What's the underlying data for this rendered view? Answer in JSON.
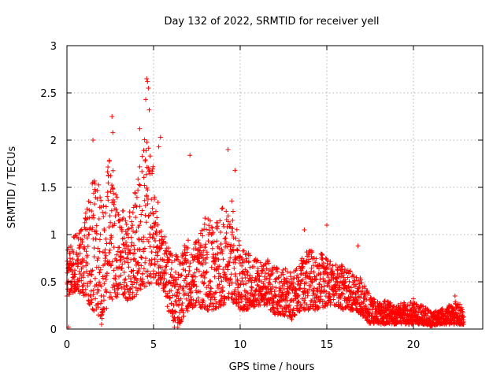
{
  "chart_data": {
    "type": "scatter",
    "title": "Day 132 of 2022, SRMTID for receiver yell",
    "xlabel": "GPS time / hours",
    "ylabel": "SRMTID / TECUs",
    "xlim": [
      0,
      24
    ],
    "ylim": [
      0,
      3
    ],
    "xticks": [
      0,
      5,
      10,
      15,
      20
    ],
    "yticks": [
      0,
      0.5,
      1,
      1.5,
      2,
      2.5,
      3
    ],
    "grid": true,
    "marker": "plus",
    "color": "#ff0000",
    "series": [
      {
        "name": "SRMTID",
        "envelope": {
          "x": [
            0,
            0.5,
            1,
            1.5,
            2,
            2.5,
            3,
            3.5,
            4,
            4.5,
            5,
            5.5,
            6,
            6.5,
            7,
            7.5,
            8,
            8.5,
            9,
            9.5,
            10,
            10.5,
            11,
            11.5,
            12,
            12.5,
            13,
            13.5,
            14,
            14.5,
            15,
            15.5,
            16,
            16.5,
            17,
            17.5,
            18,
            18.5,
            19,
            19.5,
            20,
            20.5,
            21,
            21.5,
            22,
            22.5,
            22.9
          ],
          "low": [
            0.35,
            0.4,
            0.35,
            0.2,
            0.1,
            0.3,
            0.35,
            0.3,
            0.35,
            0.45,
            0.5,
            0.45,
            0.1,
            0.05,
            0.2,
            0.25,
            0.2,
            0.2,
            0.25,
            0.3,
            0.2,
            0.2,
            0.25,
            0.25,
            0.15,
            0.15,
            0.1,
            0.2,
            0.2,
            0.2,
            0.25,
            0.25,
            0.2,
            0.2,
            0.15,
            0.05,
            0.05,
            0.05,
            0.05,
            0.05,
            0.05,
            0.05,
            0.03,
            0.05,
            0.05,
            0.05,
            0.05
          ],
          "high": [
            0.9,
            1.0,
            1.2,
            1.6,
            1.5,
            1.9,
            1.3,
            1.2,
            1.5,
            2.1,
            1.7,
            1.1,
            0.8,
            0.8,
            0.95,
            1.0,
            1.2,
            1.1,
            1.3,
            1.4,
            0.9,
            0.8,
            0.75,
            0.75,
            0.65,
            0.65,
            0.6,
            0.75,
            0.85,
            0.8,
            0.8,
            0.75,
            0.65,
            0.6,
            0.55,
            0.35,
            0.3,
            0.3,
            0.25,
            0.3,
            0.28,
            0.25,
            0.2,
            0.2,
            0.25,
            0.3,
            0.22
          ]
        },
        "highlights": [
          {
            "x": 0.1,
            "y": 0.02
          },
          {
            "x": 2.6,
            "y": 2.25
          },
          {
            "x": 2.65,
            "y": 2.08
          },
          {
            "x": 4.6,
            "y": 2.65
          },
          {
            "x": 4.65,
            "y": 2.62
          },
          {
            "x": 4.7,
            "y": 2.55
          },
          {
            "x": 4.55,
            "y": 2.43
          },
          {
            "x": 4.75,
            "y": 2.32
          },
          {
            "x": 4.2,
            "y": 2.12
          },
          {
            "x": 5.4,
            "y": 2.03
          },
          {
            "x": 5.3,
            "y": 1.93
          },
          {
            "x": 1.5,
            "y": 2.0
          },
          {
            "x": 7.1,
            "y": 1.84
          },
          {
            "x": 9.3,
            "y": 1.9
          },
          {
            "x": 9.7,
            "y": 1.68
          },
          {
            "x": 13.7,
            "y": 1.05
          },
          {
            "x": 15.0,
            "y": 1.1
          },
          {
            "x": 16.8,
            "y": 0.88
          },
          {
            "x": 2.0,
            "y": 0.05
          },
          {
            "x": 6.4,
            "y": 0.02
          },
          {
            "x": 6.5,
            "y": 0.1
          },
          {
            "x": 6.2,
            "y": 0.02
          },
          {
            "x": 20.0,
            "y": 0.32
          },
          {
            "x": 22.4,
            "y": 0.35
          }
        ]
      }
    ]
  }
}
